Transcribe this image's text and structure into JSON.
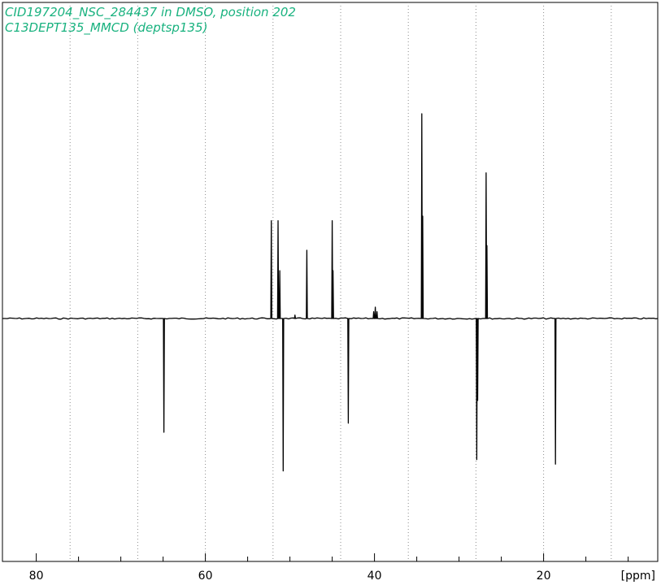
{
  "chart_data": {
    "type": "line",
    "title_lines": [
      "CID197204_NSC_284437 in DMSO, position 202",
      "C13DEPT135_MMCD (deptsp135)"
    ],
    "x_unit_label": "[ppm]",
    "xlim": [
      84,
      6.5
    ],
    "x_reversed": true,
    "ylim": [
      -1.2,
      1.3
    ],
    "grid": "vertical-dotted",
    "x_ticks": [
      80,
      60,
      40,
      20
    ],
    "x_minor_ticks": [
      75,
      70,
      65,
      55,
      50,
      45,
      35,
      30,
      25,
      15,
      10
    ],
    "x_grid_lines": [
      76,
      68,
      60,
      52,
      44,
      36,
      28,
      20,
      12
    ],
    "peaks": [
      {
        "ppm": 64.9,
        "intensity": -0.5
      },
      {
        "ppm": 52.2,
        "intensity": 0.43
      },
      {
        "ppm": 51.4,
        "intensity": 0.43
      },
      {
        "ppm": 51.2,
        "intensity": 0.21
      },
      {
        "ppm": 50.8,
        "intensity": -0.67
      },
      {
        "ppm": 49.4,
        "intensity": 0.015
      },
      {
        "ppm": 48.0,
        "intensity": 0.3
      },
      {
        "ppm": 45.0,
        "intensity": 0.43
      },
      {
        "ppm": 44.9,
        "intensity": 0.21
      },
      {
        "ppm": 43.1,
        "intensity": -0.46
      },
      {
        "ppm": 40.1,
        "intensity": 0.03
      },
      {
        "ppm": 39.9,
        "intensity": 0.05
      },
      {
        "ppm": 39.7,
        "intensity": 0.03
      },
      {
        "ppm": 34.4,
        "intensity": 0.9
      },
      {
        "ppm": 34.3,
        "intensity": 0.45
      },
      {
        "ppm": 27.9,
        "intensity": -0.62
      },
      {
        "ppm": 27.8,
        "intensity": -0.36
      },
      {
        "ppm": 26.8,
        "intensity": 0.64
      },
      {
        "ppm": 26.7,
        "intensity": 0.32
      },
      {
        "ppm": 18.6,
        "intensity": -0.64
      }
    ],
    "colors": {
      "title": "#19b27f",
      "spectrum": "#000000",
      "frame": "#000000",
      "grid": "#8c8c8c"
    }
  }
}
